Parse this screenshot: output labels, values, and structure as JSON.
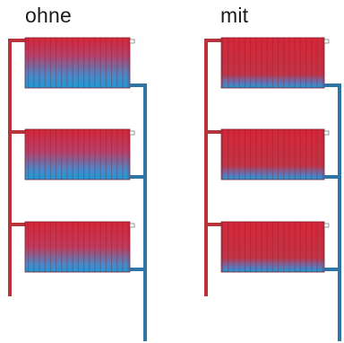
{
  "labels": {
    "left": "ohne",
    "right": "mit"
  },
  "colors": {
    "supply_pipe": "#b8343b",
    "return_pipe": "#2f74a6",
    "hot": "#d62638",
    "cold": "#1f9ad6",
    "fin_shade": "#8a1f2a"
  },
  "systems": [
    {
      "id": "left",
      "label": "ohne",
      "hot_fraction_per_radiator": [
        0.35,
        0.45,
        0.5
      ]
    },
    {
      "id": "right",
      "label": "mit",
      "hot_fraction_per_radiator": [
        0.72,
        0.72,
        0.72
      ]
    }
  ]
}
